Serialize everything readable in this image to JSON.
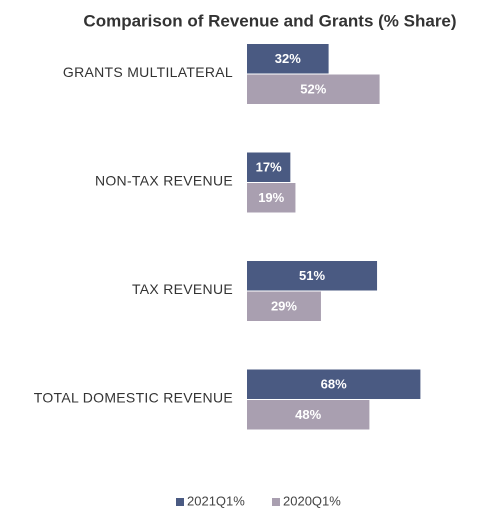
{
  "chart_data": {
    "type": "hbar",
    "title": "Comparison of Revenue and Grants (% Share)",
    "categories": [
      "GRANTS MULTILATERAL",
      "NON-TAX REVENUE",
      "TAX REVENUE",
      "TOTAL DOMESTIC REVENUE"
    ],
    "series": [
      {
        "name": "2021Q1%",
        "color": "#4a5a82",
        "values": [
          32,
          17,
          51,
          68
        ],
        "value_labels": [
          "32%",
          "17%",
          "51%",
          "68%"
        ]
      },
      {
        "name": "2020Q1%",
        "color": "#a99fb0",
        "values": [
          52,
          19,
          29,
          48
        ],
        "value_labels": [
          "52%",
          "19%",
          "29%",
          "48%"
        ]
      }
    ],
    "legend": "bottom"
  }
}
